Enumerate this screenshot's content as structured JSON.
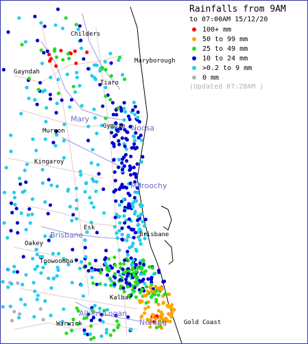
{
  "legend": {
    "title": "Rainfalls from 9AM",
    "period": "to 07:00AM 15/12/20",
    "items": [
      {
        "label": "100+ mm",
        "color": "#ff0000"
      },
      {
        "label": "50  to 99 mm",
        "color": "#ffa500"
      },
      {
        "label": "25  to 49 mm",
        "color": "#22dd22"
      },
      {
        "label": "10  to 24 mm",
        "color": "#0000cc"
      },
      {
        "label": ">0.2 to 9 mm",
        "color": "#22ccee"
      },
      {
        "label": "0 mm",
        "color": "#b0b0b0"
      }
    ],
    "updated": "(Updated 07:20AM  )"
  },
  "towns": {
    "childers": "Childers",
    "maryborough": "Maryborough",
    "gayndah": "Gayndah",
    "tiaro": "Tiaro",
    "gympie": "Gympie",
    "murgon": "Murgon",
    "kingaroy": "Kingaroy",
    "esk": "Esk",
    "brisbane_city": "Brisbane",
    "dalby": "Oakey",
    "toowoomba": "Toowoomba",
    "beaudesert": "Kalbar",
    "warwick": "Warwick",
    "gold_coast": "Gold Coast"
  },
  "basins": {
    "mary": "Mary",
    "noosa": "Noosa",
    "maroochy": "Maroochy",
    "brisbane": "Brisbane",
    "albert_logan": "Albert/Logan",
    "nerang": "Nerang"
  },
  "colors": {
    "coast": "#000000",
    "river": "#9999dd",
    "road": "#e8c8c8",
    "border": "#3333aa"
  }
}
